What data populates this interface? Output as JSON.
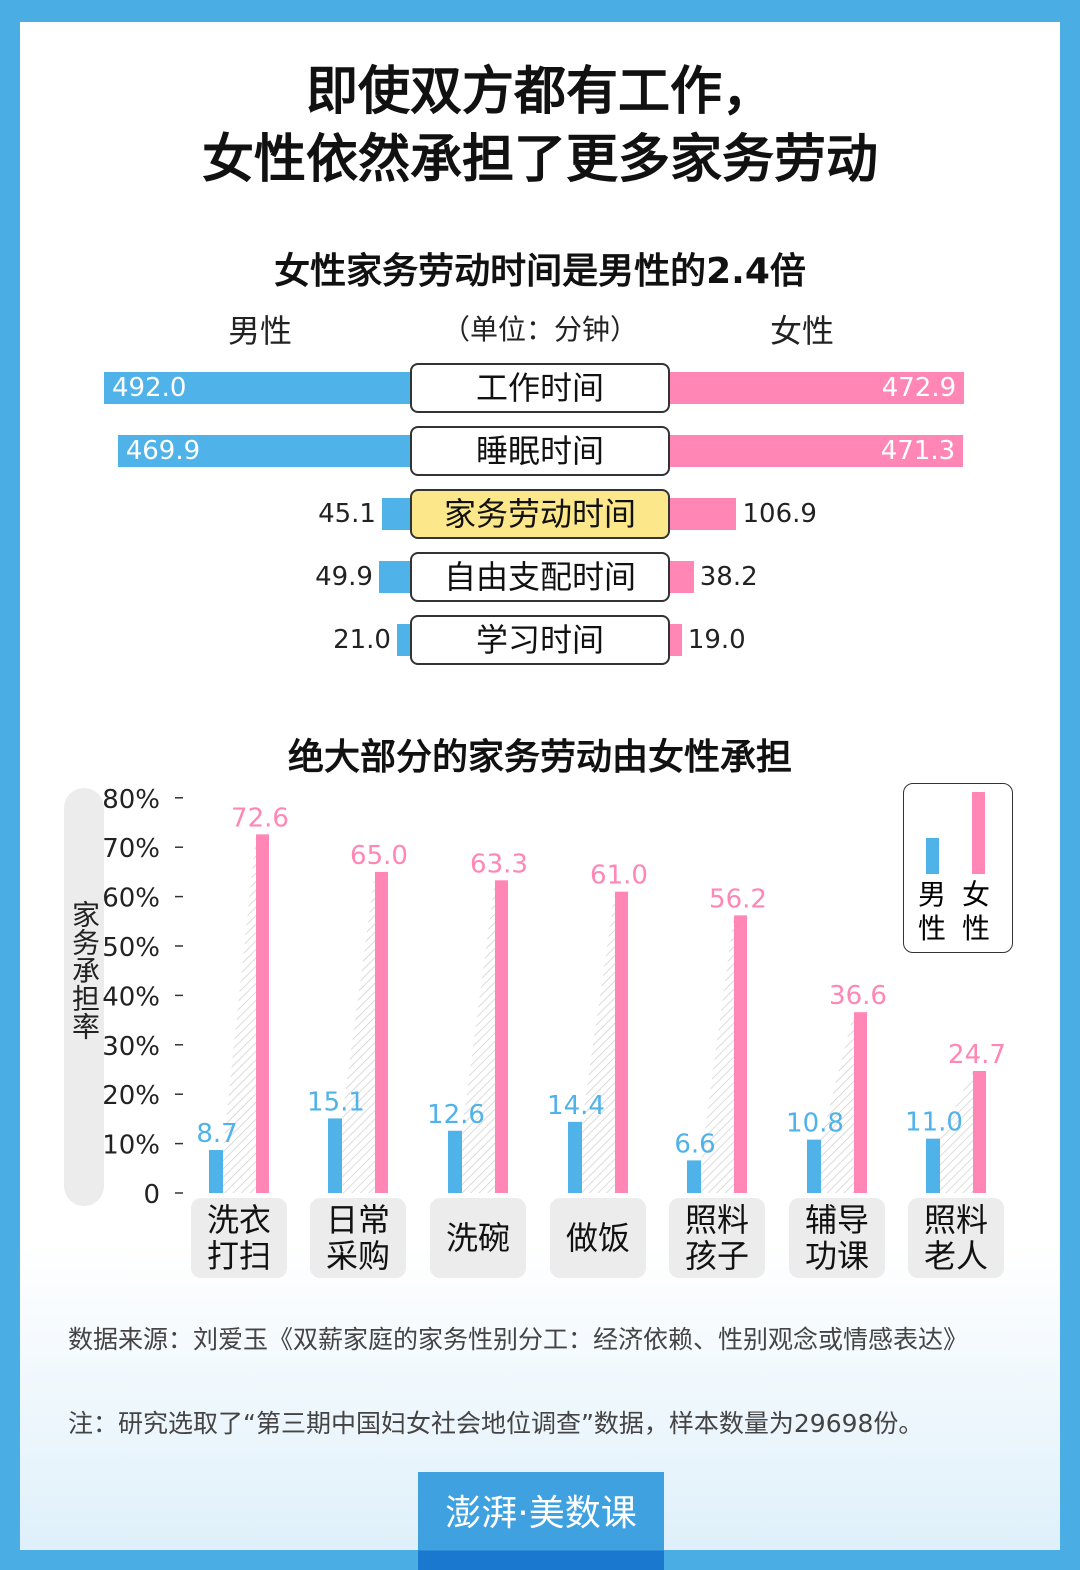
{
  "title": {
    "line1": "即使双方都有工作，",
    "line2": "女性依然承担了更多家务劳动"
  },
  "colors": {
    "male": "#4fb2e8",
    "female": "#ff86b5",
    "highlight": "#fce88a",
    "border": "#4aaee4"
  },
  "chart_data": [
    {
      "type": "bar",
      "orientation": "horizontal-diverging",
      "title": "女性家务劳动时间是男性的2.4倍",
      "left_label": "男性",
      "right_label": "女性",
      "unit": "（单位：分钟）",
      "categories": [
        "工作时间",
        "睡眠时间",
        "家务劳动时间",
        "自由支配时间",
        "学习时间"
      ],
      "highlight_category": "家务劳动时间",
      "series": [
        {
          "name": "男性",
          "values": [
            492.0,
            469.9,
            45.1,
            49.9,
            21.0
          ],
          "labels": [
            "492.0",
            "469.9",
            "45.1",
            "49.9",
            "21.0"
          ]
        },
        {
          "name": "女性",
          "values": [
            472.9,
            471.3,
            106.9,
            38.2,
            19.0
          ],
          "labels": [
            "472.9",
            "471.3",
            "106.9",
            "38.2",
            "19.0"
          ]
        }
      ]
    },
    {
      "type": "bar",
      "title": "绝大部分的家务劳动由女性承担",
      "ylabel": "家务承担率",
      "ylim": [
        0,
        80
      ],
      "yticks": [
        "0",
        "10%",
        "20%",
        "30%",
        "40%",
        "50%",
        "60%",
        "70%",
        "80%"
      ],
      "categories": [
        "洗衣\n打扫",
        "日常\n采购",
        "洗碗",
        "做饭",
        "照料\n孩子",
        "辅导\n功课",
        "照料\n老人"
      ],
      "legend": {
        "placement": "top-right",
        "male": "男\n性",
        "female": "女\n性"
      },
      "series": [
        {
          "name": "男性",
          "values": [
            8.7,
            15.1,
            12.6,
            14.4,
            6.6,
            10.8,
            11.0
          ],
          "labels": [
            "8.7",
            "15.1",
            "12.6",
            "14.4",
            "6.6",
            "10.8",
            "11.0"
          ]
        },
        {
          "name": "女性",
          "values": [
            72.6,
            65.0,
            63.3,
            61.0,
            56.2,
            36.6,
            24.7
          ],
          "labels": [
            "72.6",
            "65.0",
            "63.3",
            "61.0",
            "56.2",
            "36.6",
            "24.7"
          ]
        }
      ]
    }
  ],
  "notes": {
    "source": "数据来源：刘爱玉《双薪家庭的家务性别分工：经济依赖、性别观念或情感表达》",
    "note": "注：研究选取了“第三期中国妇女社会地位调查”数据，样本数量为29698份。"
  },
  "logo": "澎湃·美数课"
}
